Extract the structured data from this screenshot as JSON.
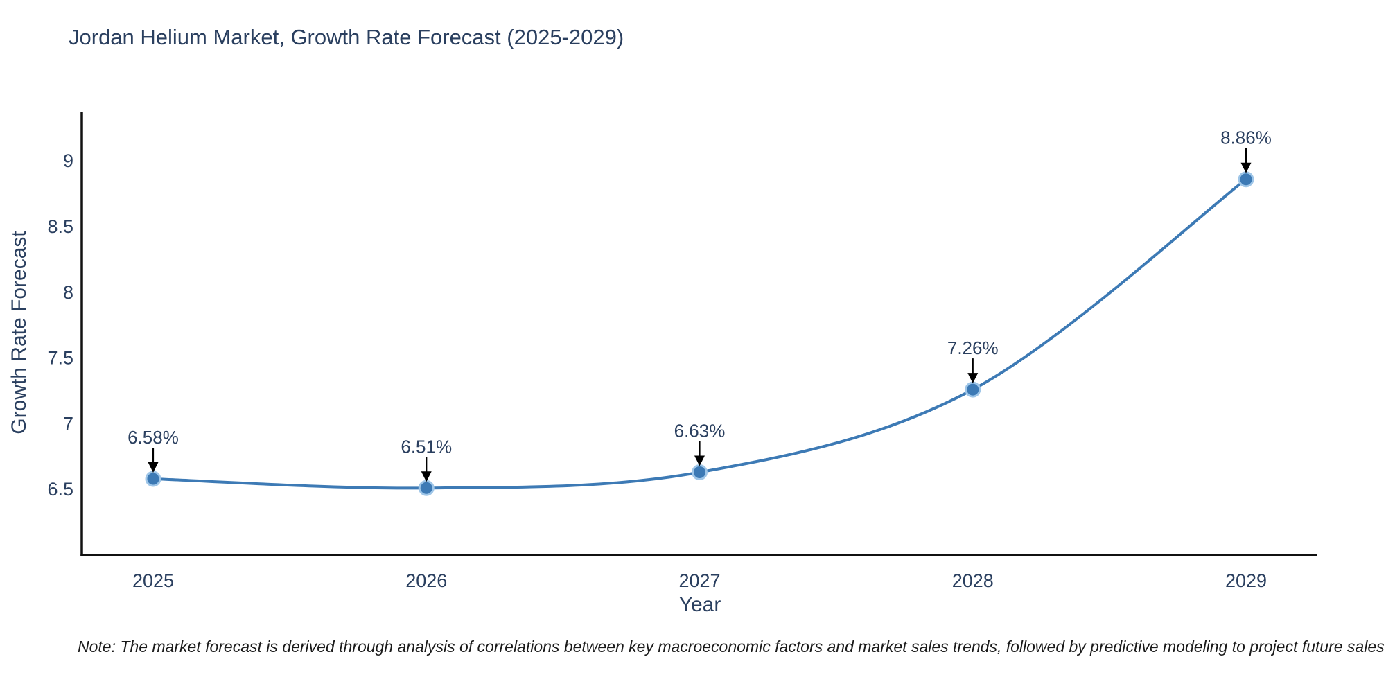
{
  "title": "Jordan Helium Market, Growth Rate Forecast (2025-2029)",
  "note": "Note: The market forecast is derived through analysis of correlations between key macroeconomic factors and market sales trends, followed by predictive modeling to project future sales",
  "chart_data": {
    "type": "line",
    "title": "Jordan Helium Market, Growth Rate Forecast (2025-2029)",
    "xlabel": "Year",
    "ylabel": "Growth Rate Forecast",
    "categories": [
      "2025",
      "2026",
      "2027",
      "2028",
      "2029"
    ],
    "series": [
      {
        "name": "Growth Rate Forecast",
        "values": [
          6.58,
          6.51,
          6.63,
          7.26,
          8.86
        ],
        "point_labels": [
          "6.58%",
          "6.51%",
          "6.63%",
          "7.26%",
          "8.86%"
        ]
      }
    ],
    "ylim": [
      6.0,
      9.37
    ],
    "yticks": [
      6.5,
      7,
      7.5,
      8,
      8.5,
      9
    ],
    "ytick_labels": [
      "6.5",
      "7",
      "7.5",
      "8",
      "8.5",
      "9"
    ],
    "grid": false,
    "legend": "none",
    "line_shape": "spline",
    "colors": {
      "line": "#3d7ab5",
      "marker": "#3d7ab5",
      "marker_halo": "#9fc6e8",
      "axis_line": "#111111",
      "text": "#2a3f5f",
      "annotation_arrow": "#000000",
      "note_text": "#1a1a1a",
      "background": "#ffffff"
    }
  }
}
